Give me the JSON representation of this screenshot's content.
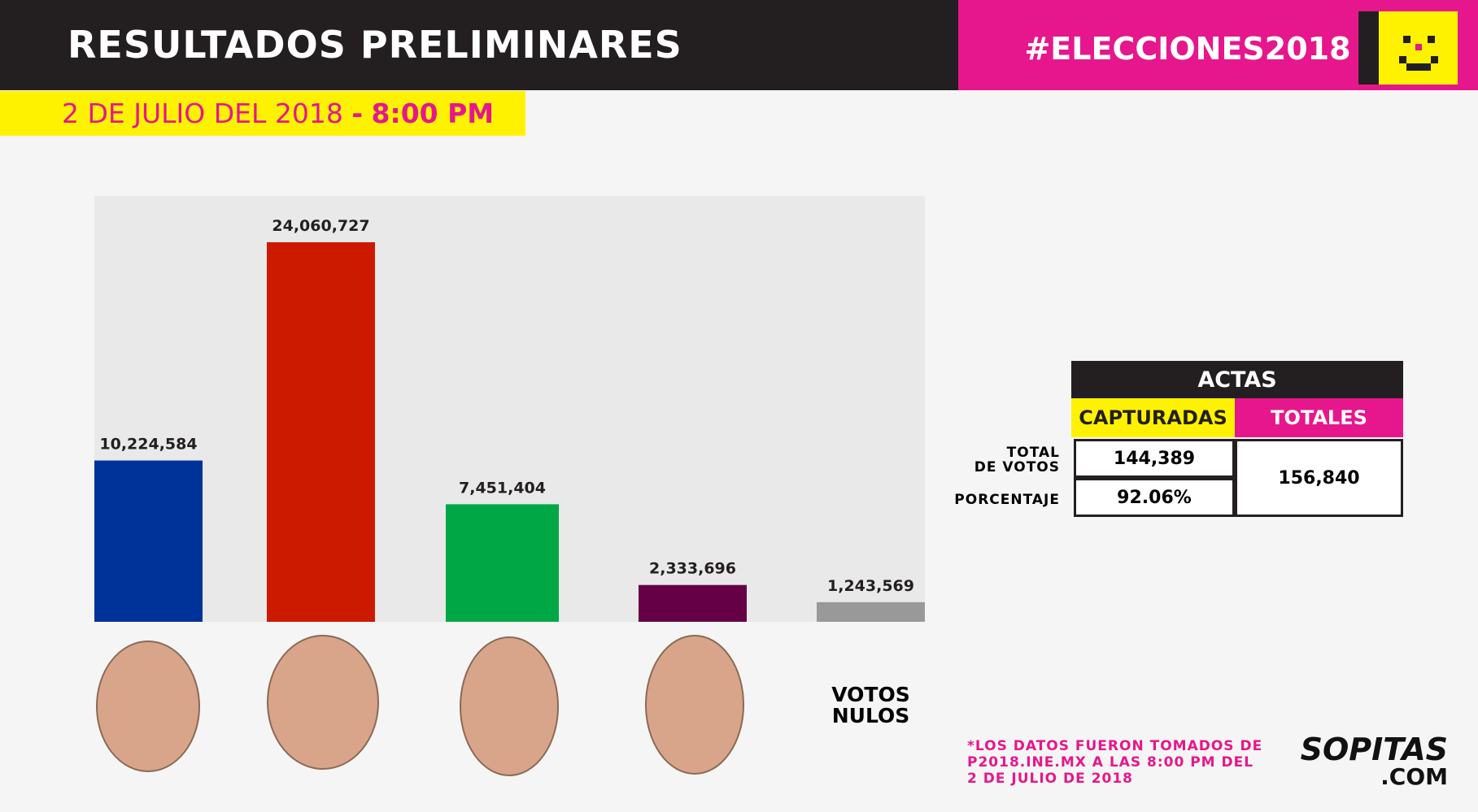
{
  "chart_data": {
    "type": "bar",
    "title": "RESULTADOS PRELIMINARES",
    "hashtag": "#ELECCIONES2018",
    "date": "2 DE JULIO DEL 2018",
    "separator": "-",
    "time": "8:00 PM",
    "categories": [
      null,
      null,
      null,
      null,
      "VOTOS NULOS"
    ],
    "values": [
      10224584,
      24060727,
      7451404,
      2333696,
      1243569
    ],
    "value_labels": [
      "10,224,584",
      "24,060,727",
      "7,451,404",
      "2,333,696",
      "1,243,569"
    ],
    "colors": [
      "#003399",
      "#cc1a00",
      "#00a845",
      "#650047",
      "#999999"
    ],
    "ylim": [
      0,
      27000000
    ]
  },
  "actas": {
    "title": "ACTAS",
    "headers": [
      "CAPTURADAS",
      "TOTALES"
    ],
    "row_labels": [
      [
        "TOTAL",
        "DE VOTOS"
      ],
      [
        "PORCENTAJE"
      ]
    ],
    "captured": [
      "144,389",
      "92.06%"
    ],
    "total": "156,840"
  },
  "note": [
    "*LOS DATOS FUERON TOMADOS DE",
    "P2018.INE.MX A LAS 8:00 PM DEL",
    "2 DE JULIO DE 2018"
  ],
  "logo": {
    "name": "SOPITAS",
    "domain": ".COM"
  }
}
